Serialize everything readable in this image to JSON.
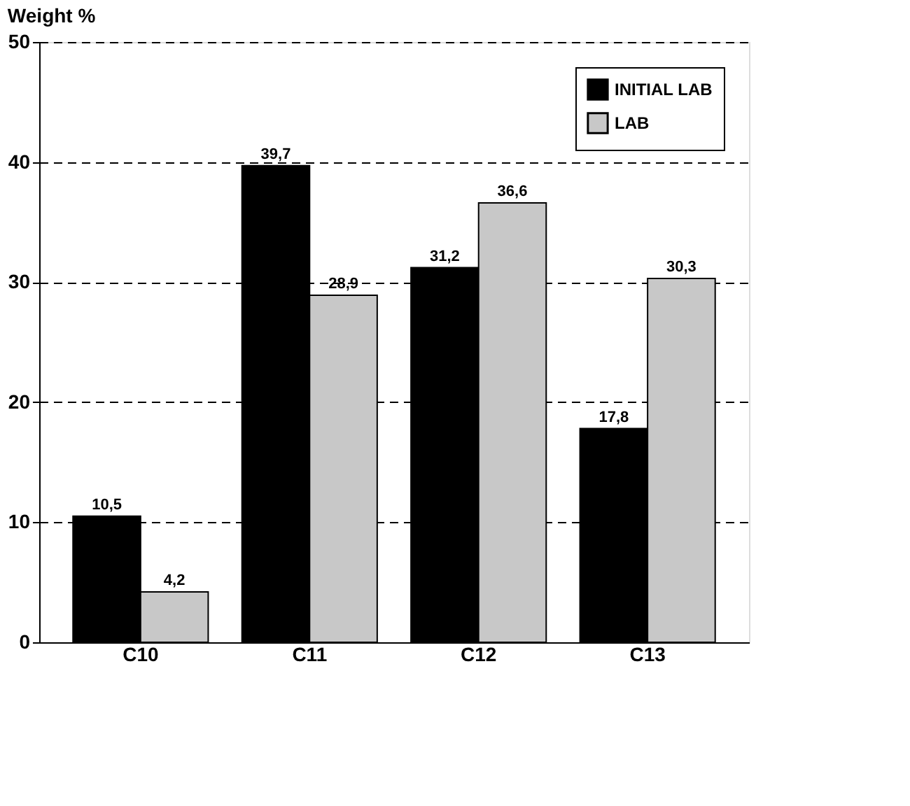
{
  "chart_data": {
    "type": "bar",
    "ylabel": "Weight %",
    "categories": [
      "C10",
      "C11",
      "C12",
      "C13"
    ],
    "series": [
      {
        "name": "INITIAL LAB",
        "color": "#000000",
        "values": [
          10.5,
          39.7,
          31.2,
          17.8
        ]
      },
      {
        "name": "LAB",
        "color": "#c8c8c8",
        "values": [
          4.2,
          28.9,
          36.6,
          30.3
        ]
      }
    ],
    "value_labels": [
      [
        "10,5",
        "39,7",
        "31,2",
        "17,8"
      ],
      [
        "4,2",
        "28,9",
        "36,6",
        "30,3"
      ]
    ],
    "ylim": [
      0,
      50
    ],
    "yticks": [
      0,
      10,
      20,
      30,
      40,
      50
    ],
    "grid": "y",
    "line_style": "dashed",
    "legend": "top right"
  }
}
